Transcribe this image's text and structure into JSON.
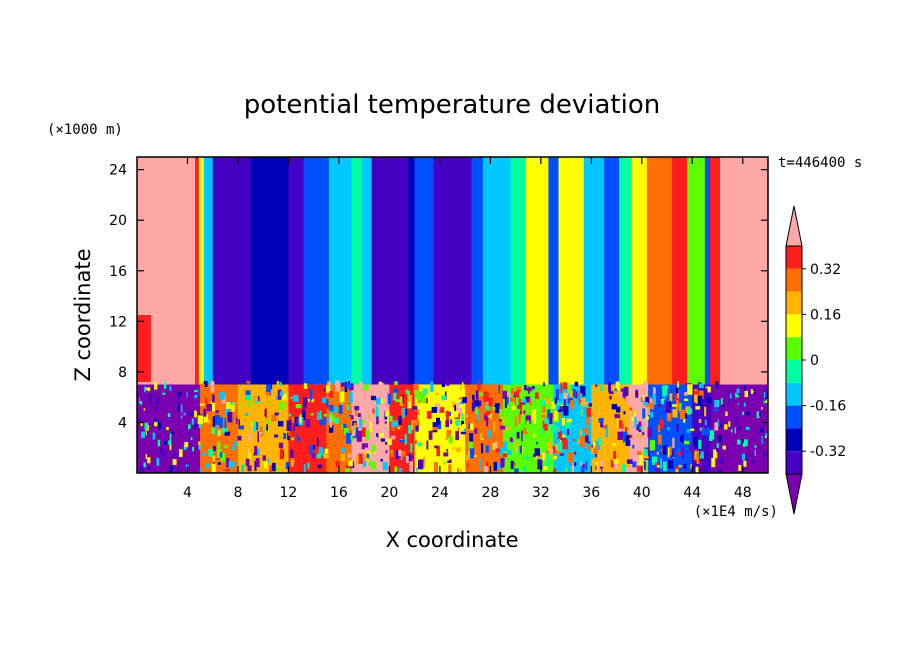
{
  "chart_data": {
    "type": "heatmap",
    "title": "potential temperature deviation",
    "xlabel": "X coordinate",
    "ylabel": "Z coordinate",
    "x_units": "(×1E4 m/s)",
    "y_units": "(×1000 m)",
    "time_label": "t=446400 s",
    "xlim": [
      0,
      50
    ],
    "ylim": [
      0,
      25
    ],
    "x_ticks": [
      4,
      8,
      12,
      16,
      20,
      24,
      28,
      32,
      36,
      40,
      44,
      48
    ],
    "y_ticks": [
      4,
      8,
      12,
      16,
      20,
      24
    ],
    "colorbar": {
      "levels": [
        "< -0.40",
        "-0.40",
        "-0.32",
        "-0.24",
        "-0.16",
        "-0.08",
        "0",
        "0.08",
        "0.16",
        "0.24",
        "0.32",
        "> 0.40"
      ],
      "colors": [
        "#7a00b0",
        "#4600c4",
        "#0000b8",
        "#0050ff",
        "#00c8ff",
        "#00ffa0",
        "#5aff00",
        "#ffff00",
        "#ffb400",
        "#ff6e00",
        "#ff1e1e",
        "#ffa8a8"
      ],
      "tick_labels": [
        "0.32",
        "0.16",
        "0",
        "-0.16",
        "-0.32"
      ],
      "tick_values": [
        0.32,
        0.16,
        0,
        -0.16,
        -0.32
      ],
      "vmin": -0.4,
      "vmax": 0.4
    },
    "upper_layer_columns": [
      {
        "x0": 0,
        "x1": 4.6,
        "level": 11
      },
      {
        "x0": 4.6,
        "x1": 4.9,
        "level": 10
      },
      {
        "x0": 4.9,
        "x1": 5.3,
        "level": 7
      },
      {
        "x0": 5.3,
        "x1": 6.0,
        "level": 4
      },
      {
        "x0": 6.0,
        "x1": 9.0,
        "level": 1
      },
      {
        "x0": 9.0,
        "x1": 12.0,
        "level": 2
      },
      {
        "x0": 12.0,
        "x1": 13.2,
        "level": 1
      },
      {
        "x0": 13.2,
        "x1": 15.2,
        "level": 3
      },
      {
        "x0": 15.2,
        "x1": 17.0,
        "level": 4
      },
      {
        "x0": 17.0,
        "x1": 17.8,
        "level": 5
      },
      {
        "x0": 17.8,
        "x1": 18.6,
        "level": 4
      },
      {
        "x0": 18.6,
        "x1": 21.5,
        "level": 1
      },
      {
        "x0": 21.5,
        "x1": 22.0,
        "level": 2
      },
      {
        "x0": 22.0,
        "x1": 23.5,
        "level": 3
      },
      {
        "x0": 23.5,
        "x1": 26.5,
        "level": 1
      },
      {
        "x0": 26.5,
        "x1": 27.4,
        "level": 3
      },
      {
        "x0": 27.4,
        "x1": 29.6,
        "level": 4
      },
      {
        "x0": 29.6,
        "x1": 30.8,
        "level": 5
      },
      {
        "x0": 30.8,
        "x1": 32.6,
        "level": 7
      },
      {
        "x0": 32.6,
        "x1": 33.4,
        "level": 3
      },
      {
        "x0": 33.4,
        "x1": 35.4,
        "level": 7
      },
      {
        "x0": 35.4,
        "x1": 37.0,
        "level": 4
      },
      {
        "x0": 37.0,
        "x1": 38.2,
        "level": 3
      },
      {
        "x0": 38.2,
        "x1": 39.2,
        "level": 5
      },
      {
        "x0": 39.2,
        "x1": 40.4,
        "level": 7
      },
      {
        "x0": 40.4,
        "x1": 42.4,
        "level": 9
      },
      {
        "x0": 42.4,
        "x1": 43.6,
        "level": 10
      },
      {
        "x0": 43.6,
        "x1": 45.0,
        "level": 6
      },
      {
        "x0": 45.0,
        "x1": 45.4,
        "level": 3
      },
      {
        "x0": 45.4,
        "x1": 46.2,
        "level": 10
      },
      {
        "x0": 46.2,
        "x1": 50.0,
        "level": 11
      }
    ],
    "interface_height": 7.0,
    "lower_layer_columns": [
      {
        "x0": 0,
        "x1": 5.0,
        "level": 0
      },
      {
        "x0": 5.0,
        "x1": 8.0,
        "level": 9
      },
      {
        "x0": 8.0,
        "x1": 12.0,
        "level": 8
      },
      {
        "x0": 12.0,
        "x1": 15.0,
        "level": 10
      },
      {
        "x0": 15.0,
        "x1": 17.0,
        "level": 9
      },
      {
        "x0": 17.0,
        "x1": 20.0,
        "level": 11
      },
      {
        "x0": 20.0,
        "x1": 22.0,
        "level": 10
      },
      {
        "x0": 22.0,
        "x1": 26.0,
        "level": 7
      },
      {
        "x0": 26.0,
        "x1": 29.0,
        "level": 9
      },
      {
        "x0": 29.0,
        "x1": 33.0,
        "level": 6
      },
      {
        "x0": 33.0,
        "x1": 36.0,
        "level": 4
      },
      {
        "x0": 36.0,
        "x1": 39.0,
        "level": 8
      },
      {
        "x0": 39.0,
        "x1": 40.5,
        "level": 11
      },
      {
        "x0": 40.5,
        "x1": 44.0,
        "level": 3
      },
      {
        "x0": 44.0,
        "x1": 45.5,
        "level": 1
      },
      {
        "x0": 45.5,
        "x1": 50.0,
        "level": 0
      }
    ]
  }
}
